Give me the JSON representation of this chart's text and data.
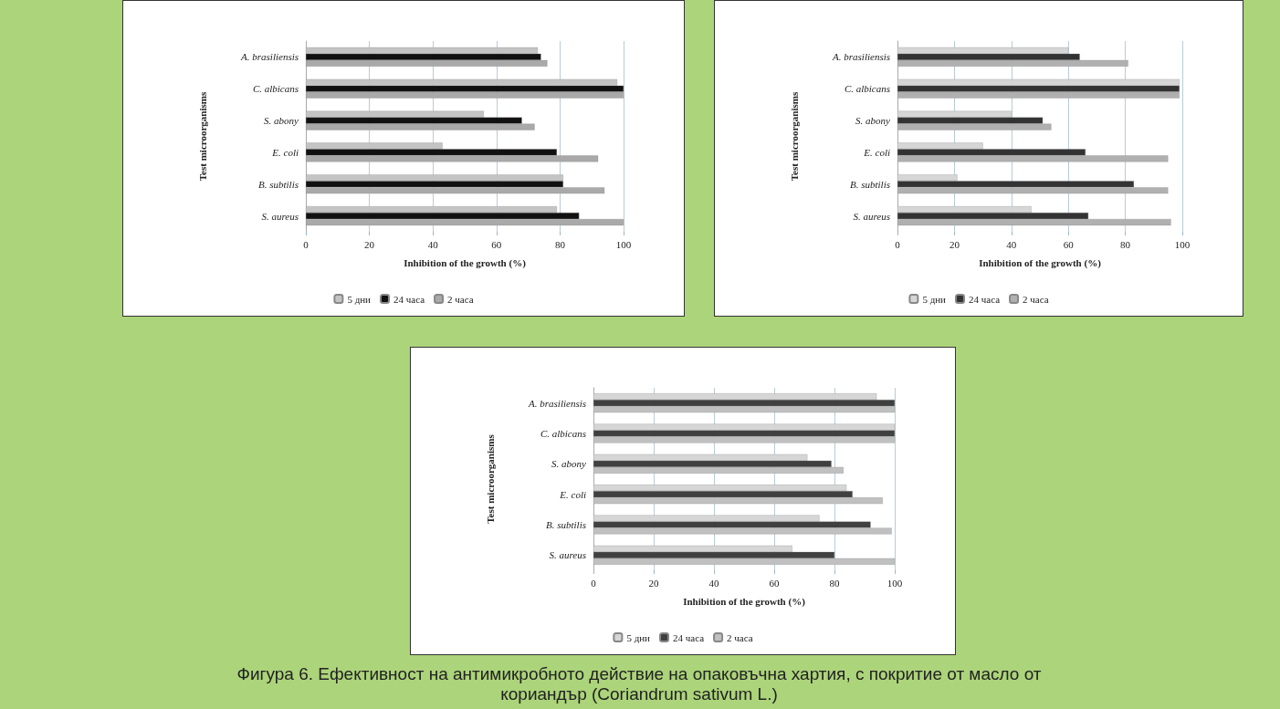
{
  "chart_data": [
    {
      "type": "bar",
      "orientation": "horizontal",
      "xlabel": "Inhibition of the growth (%)",
      "ylabel": "Test microorganisms",
      "categories": [
        "A. brasiliensis",
        "C. albicans",
        "S. abony",
        "E. coli",
        "B. subtilis",
        "S. aureus"
      ],
      "xlim": [
        0,
        100
      ],
      "xticks": [
        0,
        20,
        40,
        60,
        80,
        100
      ],
      "grid": "x",
      "legend": "bottom",
      "series": [
        {
          "name": "5 дни",
          "color": "#c4c4c4",
          "values": [
            73,
            98,
            56,
            43,
            81,
            79
          ]
        },
        {
          "name": "24 часа",
          "color": "#111111",
          "values": [
            74,
            100,
            68,
            79,
            81,
            86
          ]
        },
        {
          "name": "2 часа",
          "color": "#a9a9a9",
          "values": [
            76,
            100,
            72,
            92,
            94,
            100
          ]
        }
      ]
    },
    {
      "type": "bar",
      "orientation": "horizontal",
      "xlabel": "Inhibition of the growth (%)",
      "ylabel": "Test microorganisms",
      "categories": [
        "A. brasiliensis",
        "C. albicans",
        "S. abony",
        "E. coli",
        "B. subtilis",
        "S. aureus"
      ],
      "xlim": [
        0,
        100
      ],
      "xticks": [
        0,
        20,
        40,
        60,
        80,
        100
      ],
      "grid": "x",
      "legend": "bottom",
      "series": [
        {
          "name": "5 дни",
          "color": "#d6d6d6",
          "values": [
            60,
            99,
            40,
            30,
            21,
            47
          ]
        },
        {
          "name": "24 часа",
          "color": "#333333",
          "values": [
            64,
            99,
            51,
            66,
            83,
            67
          ]
        },
        {
          "name": "2 часа",
          "color": "#b0b0b0",
          "values": [
            81,
            99,
            54,
            95,
            95,
            96
          ]
        }
      ]
    },
    {
      "type": "bar",
      "orientation": "horizontal",
      "xlabel": "Inhibition of the growth (%)",
      "ylabel": "Test microorganisms",
      "categories": [
        "A. brasiliensis",
        "C. albicans",
        "S. abony",
        "E. coli",
        "B. subtilis",
        "S. aureus"
      ],
      "xlim": [
        0,
        100
      ],
      "xticks": [
        0,
        20,
        40,
        60,
        80,
        100
      ],
      "grid": "x",
      "legend": "bottom",
      "series": [
        {
          "name": "5 дни",
          "color": "#d6d6d6",
          "values": [
            94,
            100,
            71,
            84,
            75,
            66
          ]
        },
        {
          "name": "24 часа",
          "color": "#404040",
          "values": [
            100,
            100,
            79,
            86,
            92,
            80
          ]
        },
        {
          "name": "2 часа",
          "color": "#c0c0c0",
          "values": [
            100,
            100,
            83,
            96,
            99,
            100
          ]
        }
      ],
      "annotations": [
        "Фигура 6. Ефективност на антимикробното действие на опаковъчна хартия, с покритие от масло от кориандър (Coriandrum sativum L.)"
      ]
    }
  ]
}
